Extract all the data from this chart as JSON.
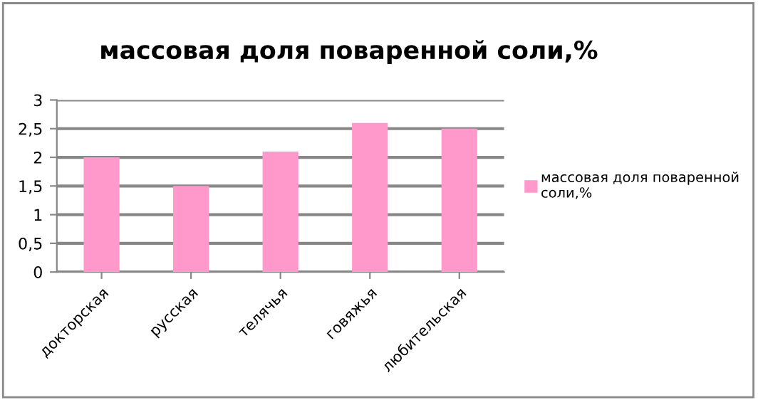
{
  "chart_data": {
    "type": "bar",
    "title": "массовая доля поваренной соли,%",
    "categories": [
      "докторская",
      "русская",
      "телячья",
      "говяжья",
      "любительская"
    ],
    "series": [
      {
        "name": "массовая доля поваренной соли,%",
        "color": "#ff99cc",
        "values": [
          2.0,
          1.5,
          2.1,
          2.6,
          2.5
        ]
      }
    ],
    "ylim": [
      0,
      3
    ],
    "yticks": [
      0,
      {
        "value": 0.5,
        "label": "0,5"
      },
      1,
      {
        "value": 1.5,
        "label": "1,5"
      },
      2,
      {
        "value": 2.5,
        "label": "2,5"
      },
      3
    ],
    "grid": "y",
    "legend": "right"
  }
}
